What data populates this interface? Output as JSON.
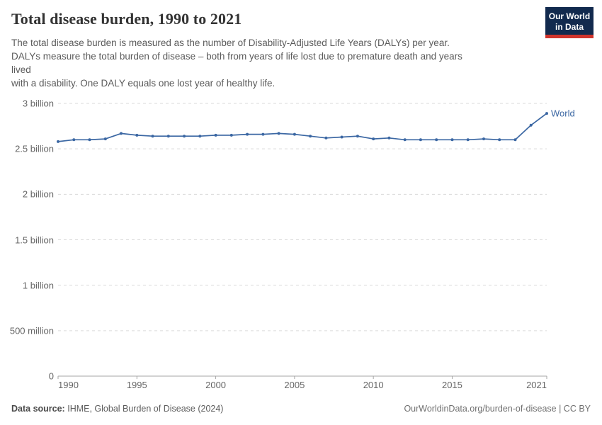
{
  "header": {
    "title": "Total disease burden, 1990 to 2021",
    "subtitle": "The total disease burden is measured as the number of Disability-Adjusted Life Years (DALYs) per year.\nDALYs measure the total burden of disease – both from years of life lost due to premature death and years\nlived\nwith a disability. One DALY equals one lost year of healthy life."
  },
  "logo": {
    "line1": "Our World",
    "line2": "in Data"
  },
  "colors": {
    "line": "#3b67a3",
    "grid": "#d9d9d9",
    "axis": "#a6a6a6",
    "tick_label": "#666666",
    "logo_bg": "#122a4e",
    "logo_stripe": "#d0342c",
    "title": "#333333",
    "subtitle": "#5b5b5b"
  },
  "chart_data": {
    "type": "line",
    "title": "Total disease burden, 1990 to 2021",
    "xlabel": "",
    "ylabel": "Disability-Adjusted Life Years (DALYs) per year",
    "ylim_billions": [
      0,
      3
    ],
    "grid": "horizontal dashed",
    "legend_position": "line-end label",
    "x_ticks": [
      1990,
      1995,
      2000,
      2005,
      2010,
      2015,
      2021
    ],
    "y_ticks": [
      {
        "value": 0,
        "label": "0"
      },
      {
        "value": 0.5,
        "label": "500 million"
      },
      {
        "value": 1,
        "label": "1 billion"
      },
      {
        "value": 1.5,
        "label": "1.5 billion"
      },
      {
        "value": 2,
        "label": "2 billion"
      },
      {
        "value": 2.5,
        "label": "2.5 billion"
      },
      {
        "value": 3,
        "label": "3 billion"
      }
    ],
    "x": [
      1990,
      1991,
      1992,
      1993,
      1994,
      1995,
      1996,
      1997,
      1998,
      1999,
      2000,
      2001,
      2002,
      2003,
      2004,
      2005,
      2006,
      2007,
      2008,
      2009,
      2010,
      2011,
      2012,
      2013,
      2014,
      2015,
      2016,
      2017,
      2018,
      2019,
      2020,
      2021
    ],
    "series": [
      {
        "name": "World",
        "values_billions": [
          2.58,
          2.6,
          2.6,
          2.61,
          2.67,
          2.65,
          2.64,
          2.64,
          2.64,
          2.64,
          2.65,
          2.65,
          2.66,
          2.66,
          2.67,
          2.66,
          2.64,
          2.62,
          2.63,
          2.64,
          2.61,
          2.62,
          2.6,
          2.6,
          2.6,
          2.6,
          2.6,
          2.61,
          2.6,
          2.6,
          2.76,
          2.89
        ]
      }
    ]
  },
  "footer": {
    "datasource_label": "Data source:",
    "datasource_value": "IHME, Global Burden of Disease (2024)",
    "attribution": "OurWorldinData.org/burden-of-disease | CC BY"
  }
}
